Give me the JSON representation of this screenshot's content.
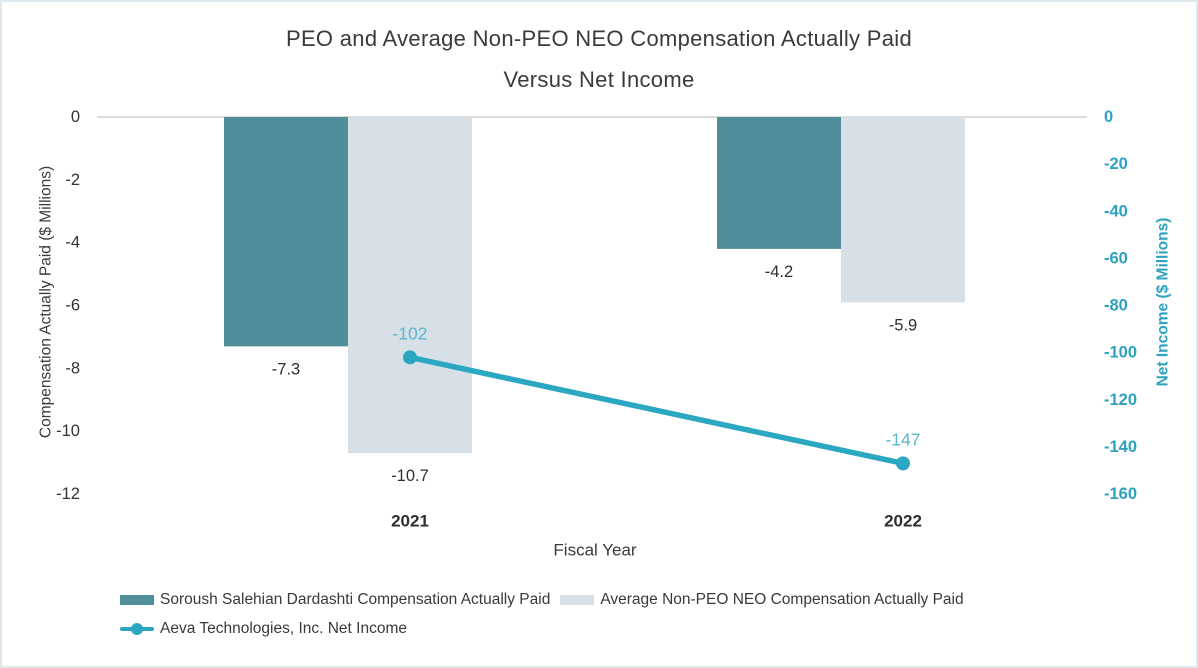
{
  "frame": {
    "background": "#ffffff",
    "border_color": "#dfe8ec"
  },
  "title": {
    "line1": "PEO and Average Non-PEO NEO Compensation Actually Paid",
    "line2": "Versus Net Income"
  },
  "chart_data": {
    "type": "bar+line (dual axis)",
    "categories": [
      "2021",
      "2022"
    ],
    "series": [
      {
        "name": "Soroush Salehian Dardashti Compensation Actually Paid",
        "type": "bar",
        "axis": "left",
        "color": "#528E99",
        "values": [
          -7.3,
          -4.2
        ],
        "labels": [
          "-7.3",
          "-4.2"
        ],
        "label_color": "#2f2f2f"
      },
      {
        "name": "Average Non-PEO NEO Compensation Actually Paid",
        "type": "bar",
        "axis": "left",
        "color": "#D7E0E6",
        "values": [
          -10.7,
          -5.9
        ],
        "labels": [
          "-10.7",
          "-5.9"
        ],
        "label_color": "#2f2f2f"
      },
      {
        "name": "Aeva Technologies, Inc. Net Income",
        "type": "line",
        "axis": "right",
        "color": "#2BA7C2",
        "values": [
          -102,
          -147
        ],
        "labels": [
          "-102",
          "-147"
        ],
        "label_color": "#5AB8CE"
      }
    ],
    "xlabel": "Fiscal Year",
    "left_axis": {
      "title": "Compensation Actually Paid ($ Millions)",
      "ticks": [
        0,
        -2,
        -4,
        -6,
        -8,
        -10,
        -12
      ],
      "range": [
        0,
        -12
      ],
      "color": "#333333"
    },
    "right_axis": {
      "title": "Net Income ($ Millions)",
      "ticks": [
        0,
        -20,
        -40,
        -60,
        -80,
        -100,
        -120,
        -140,
        -160
      ],
      "range": [
        0,
        -160
      ],
      "color": "#2DA2BE"
    },
    "grid": "zero gridline only",
    "gridline_color": "#dcdcdc",
    "legend_position": "bottom-left"
  }
}
